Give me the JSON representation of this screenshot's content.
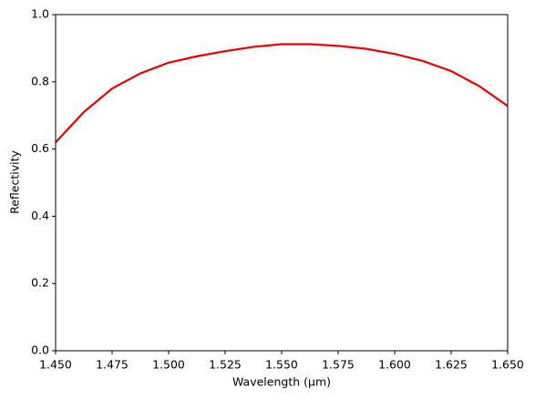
{
  "chart_data": {
    "type": "line",
    "xlabel": "Wavelength (μm)",
    "ylabel": "Reflectivity",
    "x": [
      1.45,
      1.4625,
      1.475,
      1.4875,
      1.5,
      1.5125,
      1.525,
      1.5375,
      1.55,
      1.5625,
      1.575,
      1.5875,
      1.6,
      1.6125,
      1.625,
      1.6375,
      1.65
    ],
    "series": [
      {
        "name": "Reflectivity",
        "color": "#ee0000",
        "values": [
          0.62,
          0.71,
          0.78,
          0.825,
          0.857,
          0.876,
          0.891,
          0.904,
          0.912,
          0.912,
          0.907,
          0.898,
          0.883,
          0.862,
          0.832,
          0.787,
          0.728
        ]
      }
    ],
    "xlim": [
      1.45,
      1.65
    ],
    "xticks": [
      {
        "value": 1.45,
        "label": "1.450"
      },
      1.475,
      {
        "value": 1.5,
        "label": "1.500"
      },
      1.525,
      {
        "value": 1.55,
        "label": "1.550"
      },
      1.575,
      {
        "value": 1.6,
        "label": "1.600"
      },
      1.625,
      {
        "value": 1.65,
        "label": "1.650"
      }
    ],
    "ylim": [
      0,
      1
    ],
    "yticks": [
      {
        "value": 0,
        "label": "0.0"
      },
      0.2,
      0.4,
      0.6,
      0.8,
      {
        "value": 1,
        "label": "1.0"
      }
    ],
    "grid": false
  }
}
